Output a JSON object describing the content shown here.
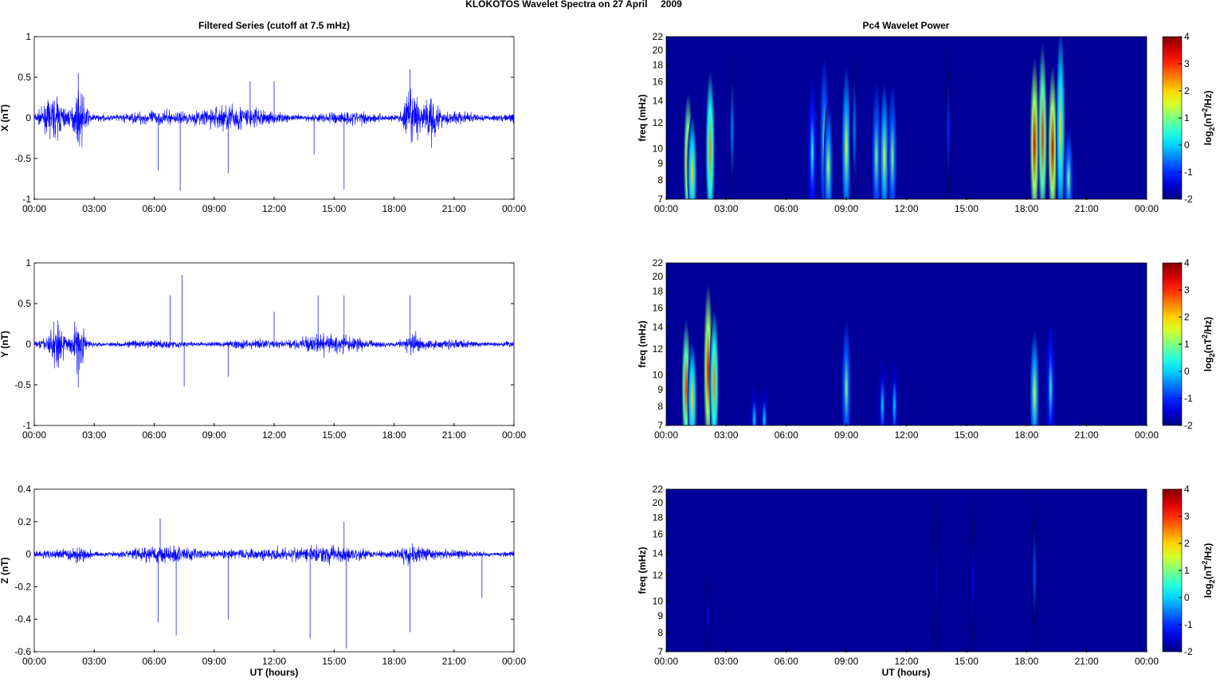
{
  "chart_data": {
    "title": "KLOKOTOS Wavelet Spectra on 27 April     2009",
    "left_title": "Filtered Series (cutoff at 7.5 mHz)",
    "right_title": "Pc4 Wavelet Power",
    "xlabel": "UT (hours)",
    "x_ticks": [
      "00:00",
      "03:00",
      "06:00",
      "09:00",
      "12:00",
      "15:00",
      "18:00",
      "21:00",
      "00:00"
    ],
    "xlim": [
      0,
      24
    ],
    "series_panels": [
      {
        "type": "line",
        "ylabel": "X (nT)",
        "ylim": [
          -1,
          1
        ],
        "y_ticks": [
          "1",
          "0.5",
          "0",
          "-0.5",
          "-1"
        ],
        "y_values": [
          1,
          0.5,
          0,
          -0.5,
          -1
        ],
        "noise": 0.06,
        "bursts": [
          [
            1.0,
            0.3,
            0.5
          ],
          [
            2.3,
            0.5,
            0.3
          ],
          [
            9.5,
            0.2,
            1.5
          ],
          [
            18.9,
            0.6,
            0.4
          ],
          [
            19.9,
            0.5,
            0.3
          ]
        ],
        "spikes": [
          [
            7.3,
            -0.9
          ],
          [
            6.2,
            -0.65
          ],
          [
            9.7,
            -0.68
          ],
          [
            15.5,
            -0.88
          ],
          [
            14.0,
            -0.45
          ],
          [
            2.2,
            0.55
          ],
          [
            18.8,
            0.6
          ],
          [
            12.0,
            0.45
          ],
          [
            10.8,
            0.45
          ]
        ]
      },
      {
        "type": "line",
        "ylabel": "Y (nT)",
        "ylim": [
          -1,
          1
        ],
        "y_ticks": [
          "1",
          "0.5",
          "0",
          "-0.5",
          "-1"
        ],
        "y_values": [
          1,
          0.5,
          0,
          -0.5,
          -1
        ],
        "noise": 0.04,
        "bursts": [
          [
            1.1,
            0.4,
            0.4
          ],
          [
            2.2,
            0.55,
            0.3
          ],
          [
            14.5,
            0.15,
            1.5
          ],
          [
            18.9,
            0.2,
            0.5
          ]
        ],
        "spikes": [
          [
            7.4,
            0.85
          ],
          [
            7.5,
            -0.52
          ],
          [
            6.8,
            0.6
          ],
          [
            15.5,
            0.6
          ],
          [
            14.2,
            0.6
          ],
          [
            9.7,
            -0.4
          ],
          [
            2.2,
            -0.53
          ],
          [
            18.8,
            0.6
          ],
          [
            12.0,
            0.4
          ]
        ]
      },
      {
        "type": "line",
        "ylabel": "Z (nT)",
        "ylim": [
          -0.6,
          0.4
        ],
        "y_ticks": [
          "0.4",
          "0.2",
          "0",
          "-0.2",
          "-0.4",
          "-0.6"
        ],
        "y_values": [
          0.4,
          0.2,
          0,
          -0.2,
          -0.4,
          -0.6
        ],
        "noise": 0.02,
        "bursts": [
          [
            2.2,
            0.05,
            0.5
          ],
          [
            7,
            0.06,
            2
          ],
          [
            14,
            0.07,
            2
          ],
          [
            18.8,
            0.08,
            0.8
          ]
        ],
        "spikes": [
          [
            7.1,
            -0.5
          ],
          [
            6.2,
            -0.42
          ],
          [
            15.6,
            -0.58
          ],
          [
            13.8,
            -0.52
          ],
          [
            18.8,
            -0.48
          ],
          [
            15.5,
            0.2
          ],
          [
            6.3,
            0.22
          ],
          [
            22.4,
            -0.27
          ],
          [
            9.7,
            -0.4
          ]
        ]
      }
    ],
    "spectra_panels": [
      {
        "type": "heatmap",
        "ylabel": "freq (mHz)",
        "blobs": [
          [
            1.1,
            7,
            14,
            3.2
          ],
          [
            1.3,
            7,
            12,
            2
          ],
          [
            2.2,
            7,
            16.5,
            2.5
          ],
          [
            3.3,
            7,
            22,
            -0.5
          ],
          [
            7.3,
            7,
            16,
            0.5
          ],
          [
            7.9,
            7,
            18,
            1
          ],
          [
            8.1,
            7,
            13,
            1.3
          ],
          [
            9.0,
            7,
            17,
            1.5
          ],
          [
            9.4,
            7,
            22,
            -0.5
          ],
          [
            10.5,
            7,
            15,
            1
          ],
          [
            10.9,
            7,
            15,
            1.5
          ],
          [
            11.3,
            7,
            15,
            1
          ],
          [
            14.1,
            7,
            22,
            -1
          ],
          [
            18.4,
            7,
            18,
            3.5
          ],
          [
            18.8,
            7,
            20,
            3
          ],
          [
            19.3,
            7,
            17,
            3.5
          ],
          [
            19.7,
            7,
            22,
            2
          ],
          [
            20.1,
            7,
            11,
            1
          ]
        ]
      },
      {
        "type": "heatmap",
        "ylabel": "freq (mHz)",
        "blobs": [
          [
            1.0,
            7,
            14,
            3
          ],
          [
            1.3,
            7,
            12,
            2
          ],
          [
            2.1,
            7,
            18,
            3.5
          ],
          [
            2.4,
            7,
            15,
            2.5
          ],
          [
            4.4,
            7,
            9,
            0
          ],
          [
            4.9,
            7,
            9,
            0
          ],
          [
            9.0,
            7,
            14,
            1
          ],
          [
            10.8,
            7,
            11,
            0
          ],
          [
            11.4,
            7,
            11,
            0
          ],
          [
            18.4,
            7,
            13,
            1.5
          ],
          [
            19.2,
            7,
            14,
            0.5
          ]
        ]
      },
      {
        "type": "heatmap",
        "ylabel": "freq (mHz)",
        "blobs": [
          [
            2.1,
            8,
            12,
            -1.2
          ],
          [
            18.4,
            8,
            22,
            -0.8
          ],
          [
            15.3,
            7,
            22,
            -1.3
          ],
          [
            13.5,
            7,
            22,
            -1.5
          ]
        ]
      }
    ],
    "freq_ticks": [
      7,
      8,
      9,
      10,
      12,
      14,
      16,
      18,
      20,
      22
    ],
    "ylim_freq": [
      7,
      22
    ],
    "colorbar": {
      "label": "log2(nT2/Hz)",
      "ticks": [
        "4",
        "3",
        "2",
        "1",
        "0",
        "-1",
        "-2"
      ],
      "range": [
        -2,
        4
      ]
    },
    "line_color": "#0000ff"
  }
}
